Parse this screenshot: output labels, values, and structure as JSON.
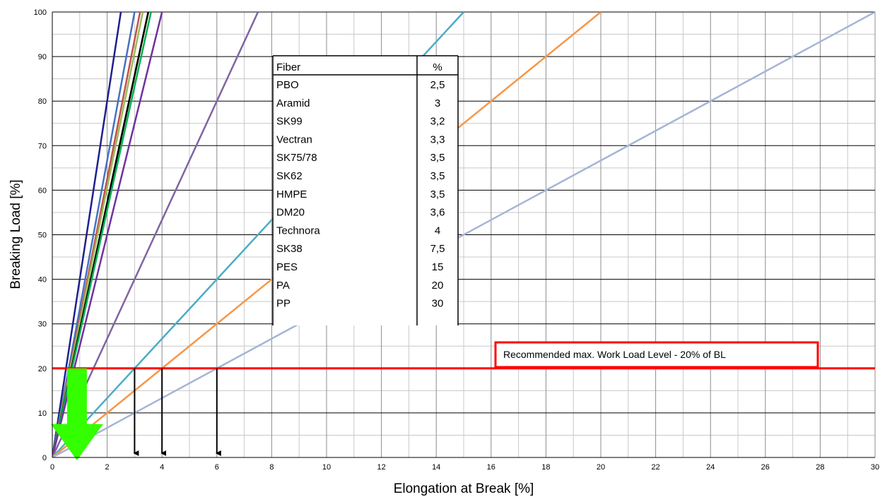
{
  "chart_data": {
    "type": "line",
    "title": "",
    "xlabel": "Elongation at Break [%]",
    "ylabel": "Breaking Load [%]",
    "xlim": [
      0,
      30
    ],
    "ylim": [
      0,
      100
    ],
    "x_ticks": [
      0,
      2,
      4,
      6,
      8,
      10,
      12,
      14,
      16,
      18,
      20,
      22,
      24,
      26,
      28,
      30
    ],
    "y_ticks": [
      0,
      10,
      20,
      30,
      40,
      50,
      60,
      70,
      80,
      90,
      100
    ],
    "grid": true,
    "series": [
      {
        "label": "PBO",
        "elongation_at_100": 2.5,
        "color": "#1f1f8f"
      },
      {
        "label": "Aramid",
        "elongation_at_100": 3,
        "color": "#4472c4"
      },
      {
        "label": "SK99",
        "elongation_at_100": 3.2,
        "color": "#c0504d"
      },
      {
        "label": "Vectran",
        "elongation_at_100": 3.3,
        "color": "#9bbb59"
      },
      {
        "label": "SK75/78",
        "elongation_at_100": 3.5,
        "color": "#f0b400"
      },
      {
        "label": "SK62",
        "elongation_at_100": 3.5,
        "color": "#a07030"
      },
      {
        "label": "HMPE",
        "elongation_at_100": 3.5,
        "color": "#000000"
      },
      {
        "label": "DM20",
        "elongation_at_100": 3.6,
        "color": "#00b050"
      },
      {
        "label": "Technora",
        "elongation_at_100": 4,
        "color": "#7030a0"
      },
      {
        "label": "SK38",
        "elongation_at_100": 7.5,
        "color": "#8064a2"
      },
      {
        "label": "PES",
        "elongation_at_100": 15,
        "color": "#4bacc6"
      },
      {
        "label": "PA",
        "elongation_at_100": 20,
        "color": "#f79646"
      },
      {
        "label": "PP",
        "elongation_at_100": 30,
        "color": "#a5b4d6"
      }
    ],
    "table": {
      "headers": [
        "Fiber",
        "%"
      ],
      "rows": [
        [
          "PBO",
          "2,5"
        ],
        [
          "Aramid",
          "3"
        ],
        [
          "SK99",
          "3,2"
        ],
        [
          "Vectran",
          "3,3"
        ],
        [
          "SK75/78",
          "3,5"
        ],
        [
          "SK62",
          "3,5"
        ],
        [
          "HMPE",
          "3,5"
        ],
        [
          "DM20",
          "3,6"
        ],
        [
          "Technora",
          "4"
        ],
        [
          "SK38",
          "7,5"
        ],
        [
          "PES",
          "15"
        ],
        [
          "PA",
          "20"
        ],
        [
          "PP",
          "30"
        ]
      ]
    },
    "work_load_line": {
      "y": 20,
      "color": "#ff0000",
      "annotation": "Recommended max. Work Load Level - 20% of BL"
    },
    "drop_arrows_x": [
      3,
      4,
      6
    ],
    "green_arrow": {
      "x": 0.9,
      "y_top": 20,
      "color": "#33ff00"
    }
  }
}
